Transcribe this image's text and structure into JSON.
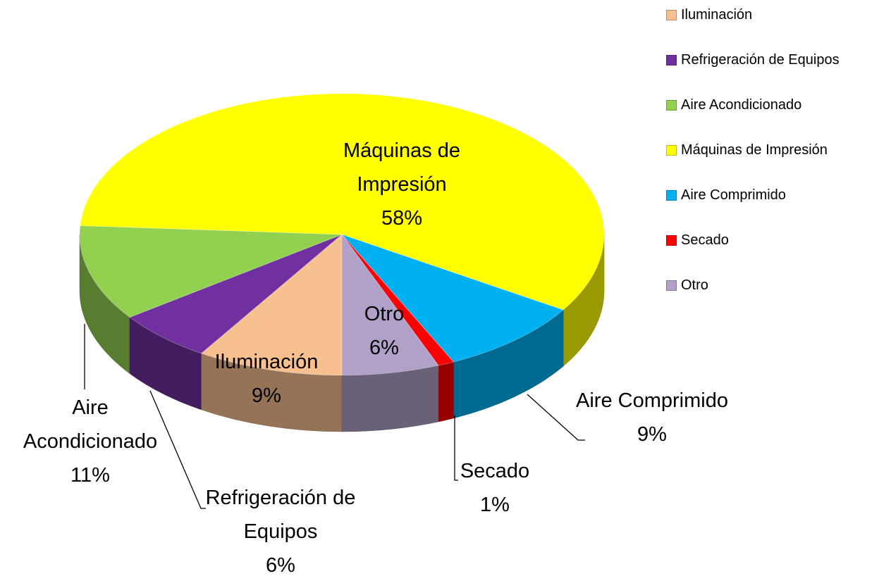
{
  "chart_data": {
    "type": "pie",
    "categories": [
      "Iluminación",
      "Refrigeración de Equipos",
      "Aire Acondicionado",
      "Máquinas de Impresión",
      "Aire Comprimido",
      "Secado",
      "Otro"
    ],
    "values": [
      9,
      6,
      11,
      58,
      9,
      1,
      6
    ],
    "value_labels": [
      "9%",
      "6%",
      "11%",
      "58%",
      "9%",
      "1%",
      "6%"
    ],
    "colors": [
      "#f8bf8f",
      "#7030a0",
      "#92d050",
      "#ffff00",
      "#00b0f0",
      "#ff0000",
      "#b1a0c7"
    ],
    "legend": "top-right"
  }
}
